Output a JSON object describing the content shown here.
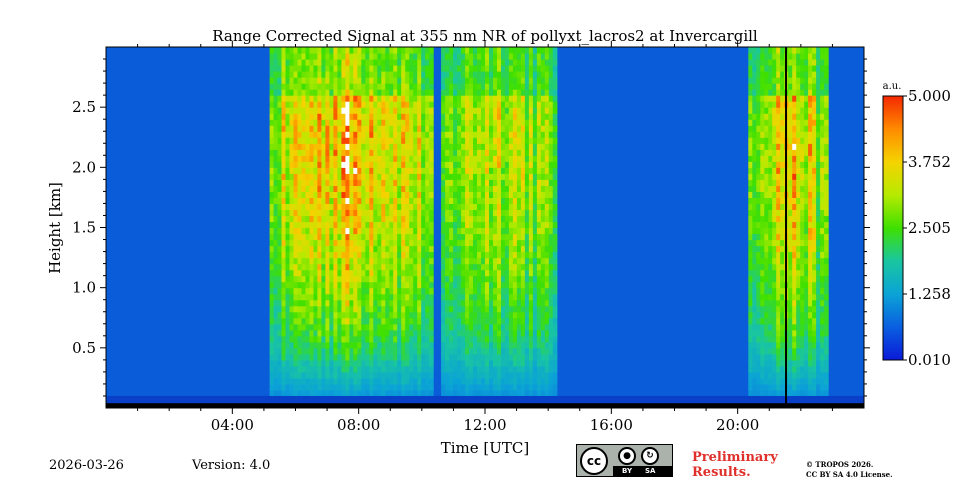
{
  "chart_data": {
    "type": "heatmap",
    "title": "Range Corrected Signal at 355 nm NR of pollyxt_lacros2 at Invercargill",
    "xlabel": "Time [UTC]",
    "ylabel": "Height [km]",
    "xlim": [
      0,
      24
    ],
    "ylim": [
      0,
      3.0
    ],
    "x_ticks": [
      {
        "value": 4,
        "label": "04:00"
      },
      {
        "value": 8,
        "label": "08:00"
      },
      {
        "value": 12,
        "label": "12:00"
      },
      {
        "value": 16,
        "label": "16:00"
      },
      {
        "value": 20,
        "label": "20:00"
      }
    ],
    "y_ticks": [
      {
        "value": 0.5,
        "label": "0.5"
      },
      {
        "value": 1.0,
        "label": "1.0"
      },
      {
        "value": 1.5,
        "label": "1.5"
      },
      {
        "value": 2.0,
        "label": "2.0"
      },
      {
        "value": 2.5,
        "label": "2.5"
      }
    ],
    "colorbar": {
      "unit": "a.u.",
      "min": 0.01,
      "max": 5.0,
      "tick_labels": [
        "5.000",
        "3.752",
        "2.505",
        "1.258",
        "0.010"
      ],
      "colormap": [
        "#0a1ad8",
        "#0a5fe0",
        "#0ba3d6",
        "#19c6a0",
        "#3fe000",
        "#b6ea00",
        "#f5d300",
        "#ff8b00",
        "#f42800"
      ]
    },
    "features": [
      {
        "name": "morning cloud system",
        "start_h": 5.2,
        "end_h": 10.4,
        "peak_value": 5.0
      },
      {
        "name": "midday cloud system",
        "start_h": 10.6,
        "end_h": 14.3,
        "peak_value": 3.9
      },
      {
        "name": "evening cloud system",
        "start_h": 20.3,
        "end_h": 22.8,
        "peak_value": 4.5
      },
      {
        "name": "data gap",
        "start_h": 21.5,
        "end_h": 21.55,
        "peak_value": 0
      }
    ]
  },
  "footer": {
    "date": "2026-03-26",
    "version": "Version: 4.0",
    "license_badge": {
      "cc": "cc",
      "by": "BY",
      "sa": "SA"
    },
    "preliminary": [
      "Preliminary",
      "Results."
    ],
    "copyright": [
      "© TROPOS 2026.",
      "CC BY SA 4.0 License."
    ]
  }
}
